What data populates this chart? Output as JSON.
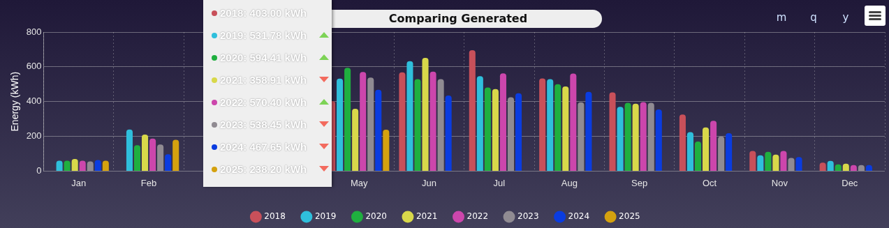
{
  "chart_data": {
    "type": "bar",
    "title": "Comparing Generated",
    "ylabel": "Energy (kWh)",
    "categories": [
      "Jan",
      "Feb",
      null,
      null,
      "May",
      "Jun",
      "Jul",
      "Aug",
      "Sep",
      "Oct",
      "Nov",
      "Dec"
    ],
    "series": [
      {
        "name": "2018",
        "color": "#c8505a",
        "values": [
          null,
          null,
          null,
          null,
          403,
          568,
          696,
          533,
          453,
          326,
          116,
          49
        ]
      },
      {
        "name": "2019",
        "color": "#2fbfdc",
        "values": [
          60,
          239,
          null,
          null,
          532,
          633,
          546,
          529,
          370,
          224,
          91,
          59
        ]
      },
      {
        "name": "2020",
        "color": "#1faf3f",
        "values": [
          60,
          149,
          null,
          null,
          594,
          529,
          481,
          500,
          393,
          170,
          111,
          39
        ]
      },
      {
        "name": "2021",
        "color": "#d8d84a",
        "values": [
          70,
          210,
          null,
          null,
          359,
          652,
          472,
          487,
          388,
          251,
          95,
          43
        ]
      },
      {
        "name": "2022",
        "color": "#cc46ac",
        "values": [
          60,
          187,
          null,
          null,
          570,
          572,
          562,
          561,
          397,
          289,
          116,
          35
        ]
      },
      {
        "name": "2023",
        "color": "#908b92",
        "values": [
          56,
          153,
          null,
          null,
          538,
          529,
          425,
          396,
          393,
          199,
          76,
          35
        ]
      },
      {
        "name": "2024",
        "color": "#0a3ce0",
        "values": [
          64,
          97,
          null,
          null,
          468,
          435,
          448,
          456,
          355,
          218,
          81,
          35
        ]
      },
      {
        "name": "2025",
        "color": "#d4a10f",
        "values": [
          60,
          180,
          null,
          null,
          238,
          null,
          null,
          null,
          null,
          null,
          null,
          null
        ]
      }
    ],
    "ylim": [
      0,
      800
    ],
    "yticks": [
      0,
      200,
      400,
      600,
      800
    ],
    "grid": true,
    "legend": "bottom",
    "annotations": [
      "2018: 403.00 kWh",
      "2019: 531.78 kWh",
      "2020: 594.41 kWh",
      "2021: 358.91 kWh",
      "2022: 570.40 kWh",
      "2023: 538.45 kWh",
      "2024: 467.65 kWh",
      "2025: 238.20 kWh",
      "m",
      "q",
      "y"
    ]
  }
}
